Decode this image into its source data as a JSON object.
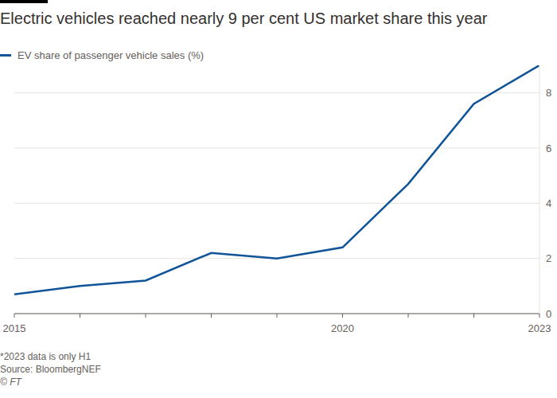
{
  "chart_data": {
    "type": "line",
    "title": "Electric vehicles reached nearly 9 per cent US market share this year",
    "x": [
      2015,
      2016,
      2017,
      2018,
      2019,
      2020,
      2021,
      2022,
      2023
    ],
    "series": [
      {
        "name": "EV share of passenger vehicle sales (%)",
        "color": "#0f5499",
        "values": [
          0.7,
          1.0,
          1.2,
          2.2,
          2.0,
          2.4,
          4.7,
          7.6,
          9.0
        ]
      }
    ],
    "xlim": [
      2015,
      2023
    ],
    "xticks": [
      2015,
      2020,
      2023
    ],
    "ylim": [
      0,
      9
    ],
    "yticks": [
      0,
      2,
      4,
      6,
      8
    ],
    "grid": true,
    "footnote": "*2023 data is only H1",
    "source": "Source: BloombergNEF",
    "credit": "© FT"
  }
}
